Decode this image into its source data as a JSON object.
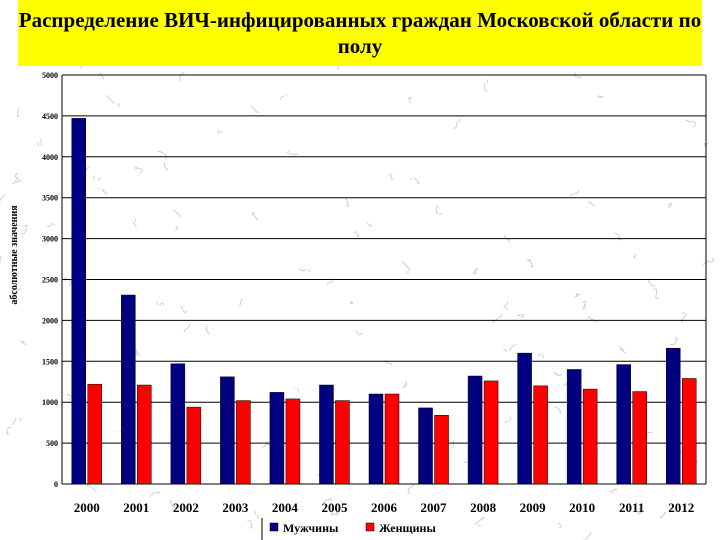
{
  "title": "Распределение ВИЧ-инфицированных граждан Московской области по полу",
  "chart_data": {
    "type": "bar",
    "title": "Распределение ВИЧ-инфицированных граждан Московской области по полу",
    "ylabel": "абсолютные значения",
    "xlabel": "",
    "categories": [
      "2000",
      "2001",
      "2002",
      "2003",
      "2004",
      "2005",
      "2006",
      "2007",
      "2008",
      "2009",
      "2010",
      "2011",
      "2012"
    ],
    "ylim": [
      0,
      5000
    ],
    "yticks": [
      0,
      500,
      1000,
      1500,
      2000,
      2500,
      3000,
      3500,
      4000,
      4500,
      5000
    ],
    "grid": true,
    "legend_position": "bottom",
    "series": [
      {
        "name": "Мужчины",
        "color": "#000080",
        "values": [
          4470,
          2310,
          1470,
          1310,
          1120,
          1210,
          1100,
          930,
          1320,
          1600,
          1400,
          1460,
          1660
        ]
      },
      {
        "name": "Женщины",
        "color": "#ff0000",
        "values": [
          1220,
          1210,
          940,
          1020,
          1040,
          1020,
          1100,
          840,
          1260,
          1200,
          1160,
          1130,
          1290
        ]
      }
    ]
  }
}
